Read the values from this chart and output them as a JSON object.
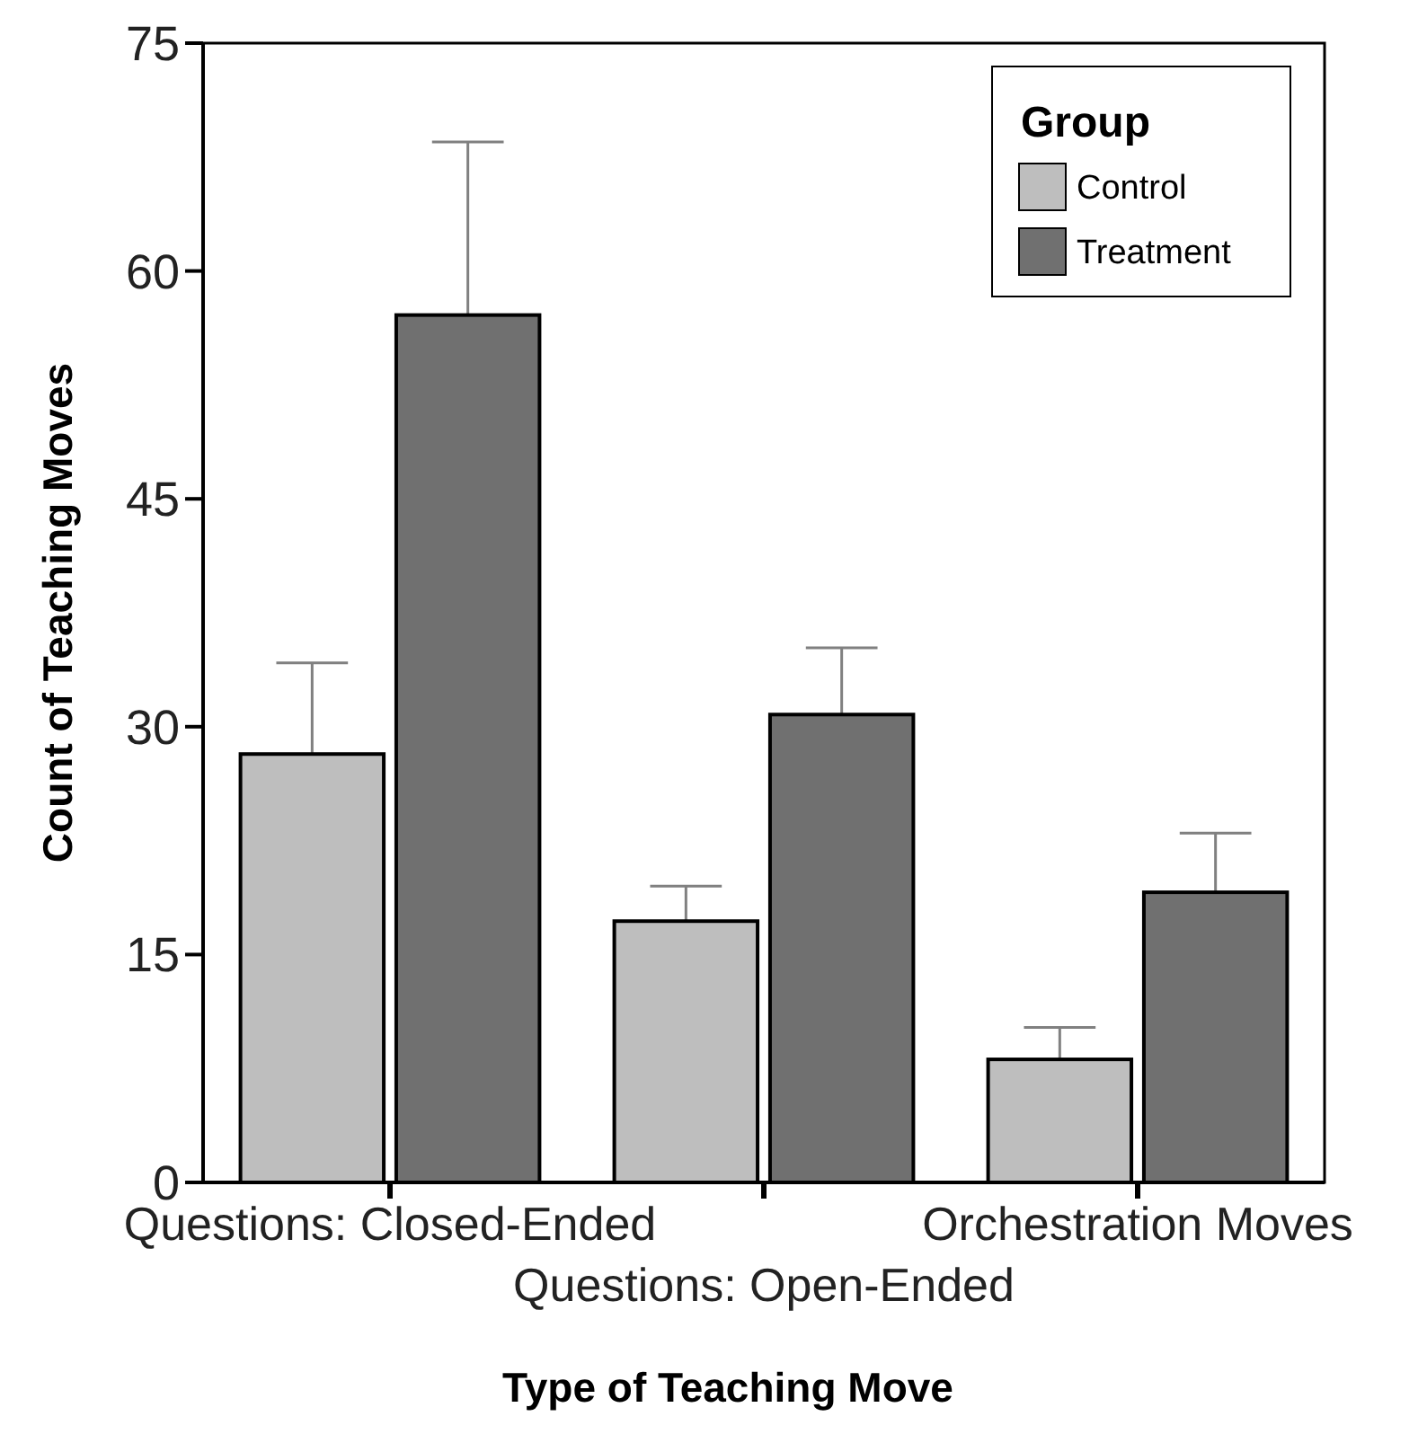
{
  "chart_data": {
    "type": "bar",
    "xlabel": "Type of Teaching Move",
    "ylabel": "Count of Teaching Moves",
    "legend_title": "Group",
    "categories": [
      "Questions: Closed-Ended",
      "Questions: Open-Ended",
      "Orchestration Moves"
    ],
    "series": [
      {
        "name": "Control",
        "color": "#bebebe",
        "values": [
          28.2,
          17.2,
          8.1
        ],
        "errors": [
          6.0,
          2.3,
          2.1
        ]
      },
      {
        "name": "Treatment",
        "color": "#707070",
        "values": [
          57.1,
          30.8,
          19.1
        ],
        "errors": [
          11.4,
          4.4,
          3.9
        ]
      }
    ],
    "ylim": [
      0,
      75
    ],
    "yticks": [
      0,
      15,
      30,
      45,
      60,
      75
    ],
    "grid": false,
    "legend": "top right"
  }
}
